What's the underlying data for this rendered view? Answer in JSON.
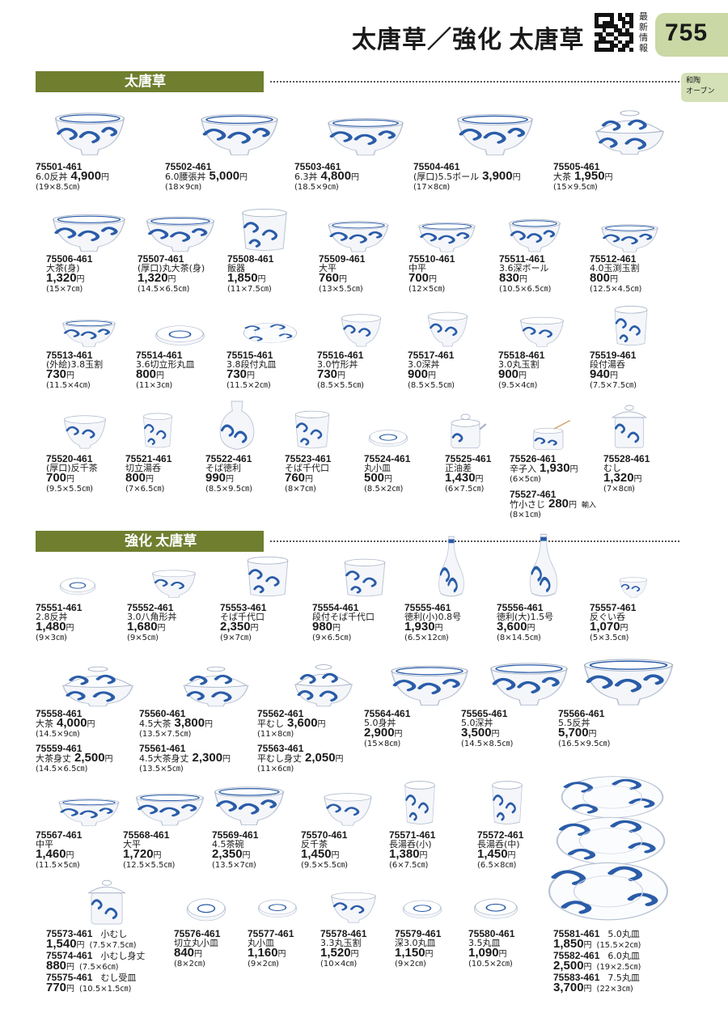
{
  "header": {
    "title": "太唐草／強化 太唐草",
    "qr_label": "最新情報",
    "page_number": "755",
    "side_tab": [
      "和陶",
      "オーブン"
    ]
  },
  "sections": [
    {
      "title": "太唐草"
    },
    {
      "title": "強化 太唐草"
    }
  ],
  "colors": {
    "section_bar": "#6f7f2f",
    "page_tab": "#c9d8a4",
    "porcelain_blue": "#2a5ca8"
  },
  "items": [
    {
      "code": "75501-461",
      "name": "6.0反丼",
      "price": "4,900",
      "size": "(19×8.5㎝)",
      "icon": "donburi-bowl-icon"
    },
    {
      "code": "75502-461",
      "name": "6.0腰張丼",
      "price": "5,000",
      "size": "(18×9㎝)",
      "icon": "donburi-bowl-icon"
    },
    {
      "code": "75503-461",
      "name": "6.3丼",
      "price": "4,800",
      "size": "(18.5×9㎝)",
      "icon": "donburi-bowl-icon"
    },
    {
      "code": "75504-461",
      "name": "(厚口)5.5ボール",
      "price": "3,900",
      "size": "(17×8㎝)",
      "icon": "deep-bowl-icon"
    },
    {
      "code": "75505-461",
      "name": "大茶",
      "price": "1,950",
      "size": "(15×9.5㎝)",
      "icon": "lidded-bowl-icon"
    },
    {
      "code": "75506-461",
      "name": "大茶(身)",
      "price": "1,320",
      "size": "(15×7㎝)",
      "icon": "rice-bowl-icon"
    },
    {
      "code": "75507-461",
      "name": "(厚口)丸大茶(身)",
      "price": "1,320",
      "size": "(14.5×6.5㎝)",
      "icon": "rice-bowl-icon"
    },
    {
      "code": "75508-461",
      "name": "飯器",
      "price": "1,850",
      "size": "(11×7.5㎝)",
      "icon": "cylinder-bowl-icon"
    },
    {
      "code": "75509-461",
      "name": "大平",
      "price": "760",
      "size": "(13×5.5㎝)",
      "icon": "shallow-bowl-icon"
    },
    {
      "code": "75510-461",
      "name": "中平",
      "price": "700",
      "size": "(12×5㎝)",
      "icon": "shallow-bowl-icon"
    },
    {
      "code": "75511-461",
      "name": "3.6深ボール",
      "price": "830",
      "size": "(10.5×6.5㎝)",
      "icon": "deep-bowl-icon"
    },
    {
      "code": "75512-461",
      "name": "4.0玉渕玉割",
      "price": "800",
      "size": "(12.5×4.5㎝)",
      "icon": "rice-bowl-icon"
    },
    {
      "code": "75513-461",
      "name": "(外絵)3.8玉割",
      "price": "730",
      "size": "(11.5×4㎝)",
      "icon": "shallow-bowl-icon"
    },
    {
      "code": "75514-461",
      "name": "3.6切立形丸皿",
      "price": "800",
      "size": "(11×3㎝)",
      "icon": "small-dish-icon"
    },
    {
      "code": "75515-461",
      "name": "3.8段付丸皿",
      "price": "730",
      "size": "(11.5×2㎝)",
      "icon": "plate-icon"
    },
    {
      "code": "75516-461",
      "name": "3.0竹形丼",
      "price": "730",
      "size": "(8.5×5.5㎝)",
      "icon": "small-bowl-icon"
    },
    {
      "code": "75517-461",
      "name": "3.0深丼",
      "price": "900",
      "size": "(8.5×5.5㎝)",
      "icon": "small-bowl-icon"
    },
    {
      "code": "75518-461",
      "name": "3.0丸玉割",
      "price": "900",
      "size": "(9.5×4㎝)",
      "icon": "small-bowl-icon"
    },
    {
      "code": "75519-461",
      "name": "段付湯呑",
      "price": "940",
      "size": "(7.5×7.5㎝)",
      "icon": "teacup-icon"
    },
    {
      "code": "75520-461",
      "name": "(厚口)反千茶",
      "price": "700",
      "size": "(9.5×5.5㎝)",
      "icon": "small-bowl-icon"
    },
    {
      "code": "75521-461",
      "name": "切立湯呑",
      "price": "800",
      "size": "(7×6.5㎝)",
      "icon": "teacup-icon"
    },
    {
      "code": "75522-461",
      "name": "そば徳利",
      "price": "990",
      "size": "(8.5×9.5㎝)",
      "icon": "soba-pitcher-icon"
    },
    {
      "code": "75523-461",
      "name": "そば千代口",
      "price": "760",
      "size": "(8×7㎝)",
      "icon": "teacup-icon"
    },
    {
      "code": "75524-461",
      "name": "丸小皿",
      "price": "500",
      "size": "(8.5×2㎝)",
      "icon": "small-dish-icon"
    },
    {
      "code": "75525-461",
      "name": "正油差",
      "price": "1,430",
      "size": "(6×7.5㎝)",
      "icon": "soy-dispenser-icon"
    },
    {
      "code": "75526-461",
      "name": "辛子入",
      "price": "1,930",
      "size": "(6×5㎝)",
      "icon": "mustard-pot-icon"
    },
    {
      "code": "75527-461",
      "name": "竹小さじ",
      "price": "280",
      "size": "(8×1㎝)",
      "note": "輸入"
    },
    {
      "code": "75528-461",
      "name": "むし",
      "price": "1,320",
      "size": "(7×8㎝)",
      "icon": "lidded-cup-icon"
    },
    {
      "code": "75551-461",
      "name": "2.8反丼",
      "price": "1,480",
      "size": "(9×3㎝)",
      "icon": "small-dish-icon"
    },
    {
      "code": "75552-461",
      "name": "3.0八角形丼",
      "price": "1,680",
      "size": "(9×5㎝)",
      "icon": "small-bowl-icon"
    },
    {
      "code": "75553-461",
      "name": "そば千代口",
      "price": "2,350",
      "size": "(9×7㎝)",
      "icon": "teacup-icon"
    },
    {
      "code": "75554-461",
      "name": "段付そば千代口",
      "price": "980",
      "size": "(9×6.5㎝)",
      "icon": "teacup-icon"
    },
    {
      "code": "75555-461",
      "name": "徳利(小)0.8号",
      "price": "1,930",
      "size": "(6.5×12㎝)",
      "icon": "sake-bottle-icon"
    },
    {
      "code": "75556-461",
      "name": "徳利(大)1.5号",
      "price": "3,600",
      "size": "(8×14.5㎝)",
      "icon": "sake-bottle-icon"
    },
    {
      "code": "75557-461",
      "name": "反ぐい呑",
      "price": "1,070",
      "size": "(5×3.5㎝)",
      "icon": "sake-cup-icon"
    },
    {
      "code": "75558-461",
      "name": "大茶",
      "price": "4,000",
      "size": "(14.5×9㎝)",
      "icon": "lidded-bowl-icon"
    },
    {
      "code": "75559-461",
      "name": "大茶身丈",
      "price": "2,500",
      "size": "(14.5×6.5㎝)"
    },
    {
      "code": "75560-461",
      "name": "4.5大茶",
      "price": "3,800",
      "size": "(13.5×7.5㎝)",
      "icon": "lidded-bowl-icon"
    },
    {
      "code": "75561-461",
      "name": "4.5大茶身丈",
      "price": "2,300",
      "size": "(13.5×5㎝)"
    },
    {
      "code": "75562-461",
      "name": "平むし",
      "price": "3,600",
      "size": "(11×8㎝)",
      "icon": "lidded-bowl-icon"
    },
    {
      "code": "75563-461",
      "name": "平むし身丈",
      "price": "2,050",
      "size": "(11×6㎝)"
    },
    {
      "code": "75564-461",
      "name": "5.0身丼",
      "price": "2,900",
      "size": "(15×8㎝)",
      "icon": "donburi-bowl-icon"
    },
    {
      "code": "75565-461",
      "name": "5.0深丼",
      "price": "3,500",
      "size": "(14.5×8.5㎝)",
      "icon": "donburi-bowl-icon"
    },
    {
      "code": "75566-461",
      "name": "5.5反丼",
      "price": "5,700",
      "size": "(16.5×9.5㎝)",
      "icon": "donburi-bowl-icon"
    },
    {
      "code": "75567-461",
      "name": "中平",
      "price": "1,460",
      "size": "(11.5×5㎝)",
      "icon": "shallow-bowl-icon"
    },
    {
      "code": "75568-461",
      "name": "大平",
      "price": "1,720",
      "size": "(12.5×5.5㎝)",
      "icon": "shallow-bowl-icon"
    },
    {
      "code": "75569-461",
      "name": "4.5茶碗",
      "price": "2,350",
      "size": "(13.5×7㎝)",
      "icon": "rice-bowl-icon"
    },
    {
      "code": "75570-461",
      "name": "反千茶",
      "price": "1,450",
      "size": "(9.5×5.5㎝)",
      "icon": "small-bowl-icon"
    },
    {
      "code": "75571-461",
      "name": "長湯呑(小)",
      "price": "1,380",
      "size": "(6×7.5㎝)",
      "icon": "tall-teacup-icon"
    },
    {
      "code": "75572-461",
      "name": "長湯呑(中)",
      "price": "1,450",
      "size": "(6.5×8㎝)",
      "icon": "tall-teacup-icon"
    },
    {
      "code": "75573-461",
      "name": "小むし",
      "price": "1,540",
      "size": "(7.5×7.5㎝)",
      "icon": "lidded-cup-icon"
    },
    {
      "code": "75574-461",
      "name": "小むし身丈",
      "price": "880",
      "size": "(7.5×6㎝)"
    },
    {
      "code": "75575-461",
      "name": "むし受皿",
      "price": "770",
      "size": "(10.5×1.5㎝)"
    },
    {
      "code": "75576-461",
      "name": "切立丸小皿",
      "price": "840",
      "size": "(8×2㎝)",
      "icon": "small-dish-icon"
    },
    {
      "code": "75577-461",
      "name": "丸小皿",
      "price": "1,160",
      "size": "(9×2㎝)",
      "icon": "small-dish-icon"
    },
    {
      "code": "75578-461",
      "name": "3.3丸玉割",
      "price": "1,520",
      "size": "(10×4㎝)",
      "icon": "small-bowl-icon"
    },
    {
      "code": "75579-461",
      "name": "深3.0丸皿",
      "price": "1,150",
      "size": "(9×2㎝)",
      "icon": "small-dish-icon"
    },
    {
      "code": "75580-461",
      "name": "3.5丸皿",
      "price": "1,090",
      "size": "(10.5×2㎝)",
      "icon": "small-dish-icon"
    },
    {
      "code": "75581-461",
      "name": "5.0丸皿",
      "price": "1,850",
      "size": "(15.5×2㎝)",
      "icon": "plate-icon"
    },
    {
      "code": "75582-461",
      "name": "6.0丸皿",
      "price": "2,500",
      "size": "(19×2.5㎝)",
      "icon": "plate-icon"
    },
    {
      "code": "75583-461",
      "name": "7.5丸皿",
      "price": "3,700",
      "size": "(22×3㎝)",
      "icon": "plate-icon"
    }
  ],
  "yen": "円"
}
